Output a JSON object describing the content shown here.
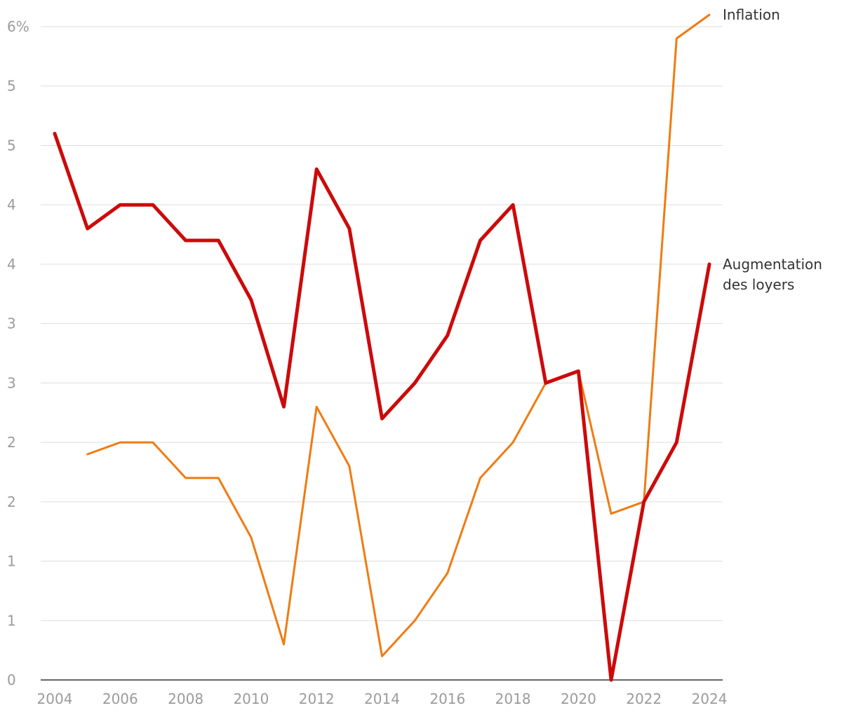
{
  "chart_data": {
    "type": "line",
    "title": "",
    "xlabel": "",
    "ylabel": "",
    "x": [
      2004,
      2005,
      2006,
      2007,
      2008,
      2009,
      2010,
      2011,
      2012,
      2013,
      2014,
      2015,
      2016,
      2017,
      2018,
      2019,
      2020,
      2021,
      2022,
      2023,
      2024
    ],
    "xlim": [
      2004,
      2024
    ],
    "ylim": [
      0,
      5.5
    ],
    "y_ticks": [
      {
        "value": 0,
        "label": "0"
      },
      {
        "value": 0.5,
        "label": "1"
      },
      {
        "value": 1.0,
        "label": "1"
      },
      {
        "value": 1.5,
        "label": "2"
      },
      {
        "value": 2.0,
        "label": "2"
      },
      {
        "value": 2.5,
        "label": "3"
      },
      {
        "value": 3.0,
        "label": "3"
      },
      {
        "value": 3.5,
        "label": "4"
      },
      {
        "value": 4.0,
        "label": "4"
      },
      {
        "value": 4.5,
        "label": "5"
      },
      {
        "value": 5.0,
        "label": "5"
      },
      {
        "value": 5.5,
        "label": "6%"
      }
    ],
    "x_ticks": [
      {
        "value": 2004,
        "label": "2004"
      },
      {
        "value": 2006,
        "label": "2006"
      },
      {
        "value": 2008,
        "label": "2008"
      },
      {
        "value": 2010,
        "label": "2010"
      },
      {
        "value": 2012,
        "label": "2012"
      },
      {
        "value": 2014,
        "label": "2014"
      },
      {
        "value": 2016,
        "label": "2016"
      },
      {
        "value": 2018,
        "label": "2018"
      },
      {
        "value": 2020,
        "label": "2020"
      },
      {
        "value": 2022,
        "label": "2022"
      },
      {
        "value": 2024,
        "label": "2024"
      }
    ],
    "grid": true,
    "series": [
      {
        "name": "Inflation",
        "label_lines": [
          "Inflation"
        ],
        "color": "#f07b12",
        "values": [
          null,
          1.9,
          2.0,
          2.0,
          1.7,
          1.7,
          1.2,
          0.3,
          2.3,
          1.8,
          0.2,
          0.5,
          0.9,
          1.7,
          2.0,
          2.5,
          2.6,
          1.4,
          1.5,
          5.4,
          5.6
        ]
      },
      {
        "name": "Augmentation des loyers",
        "label_lines": [
          "Augmentation",
          "des loyers"
        ],
        "color": "#cc0a0a",
        "values": [
          4.6,
          3.8,
          4.0,
          4.0,
          3.7,
          3.7,
          3.2,
          2.3,
          4.3,
          3.8,
          2.2,
          2.5,
          2.9,
          3.7,
          4.0,
          2.5,
          2.6,
          0.0,
          1.5,
          2.0,
          3.5
        ]
      }
    ]
  }
}
